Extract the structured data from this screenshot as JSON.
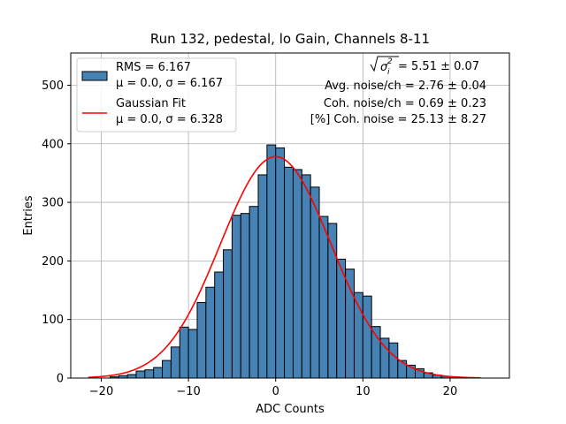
{
  "chart_data": {
    "type": "bar",
    "title": "Run 132, pedestal, lo Gain, Channels 8-11",
    "xlabel": "ADC Counts",
    "ylabel": "Entries",
    "xlim": [
      -23.5,
      26.8
    ],
    "ylim": [
      0,
      555
    ],
    "xticks": [
      -20,
      -10,
      0,
      10,
      20
    ],
    "yticks": [
      0,
      100,
      200,
      300,
      400,
      500
    ],
    "xtick_labels": [
      "−20",
      "−10",
      "0",
      "10",
      "20"
    ],
    "ytick_labels": [
      "0",
      "100",
      "200",
      "300",
      "400",
      "500"
    ],
    "grid": true,
    "bin_width": 1.0,
    "bins": [
      {
        "x0": -19,
        "x1": -18,
        "count": 2
      },
      {
        "x0": -18,
        "x1": -17,
        "count": 4
      },
      {
        "x0": -17,
        "x1": -16,
        "count": 6
      },
      {
        "x0": -16,
        "x1": -15,
        "count": 12
      },
      {
        "x0": -15,
        "x1": -14,
        "count": 14
      },
      {
        "x0": -14,
        "x1": -13,
        "count": 18
      },
      {
        "x0": -13,
        "x1": -12,
        "count": 30
      },
      {
        "x0": -12,
        "x1": -11,
        "count": 53
      },
      {
        "x0": -11,
        "x1": -10,
        "count": 87
      },
      {
        "x0": -10,
        "x1": -9,
        "count": 83
      },
      {
        "x0": -9,
        "x1": -8,
        "count": 129
      },
      {
        "x0": -8,
        "x1": -7,
        "count": 155
      },
      {
        "x0": -7,
        "x1": -6,
        "count": 181
      },
      {
        "x0": -6,
        "x1": -5,
        "count": 219
      },
      {
        "x0": -5,
        "x1": -4,
        "count": 278
      },
      {
        "x0": -4,
        "x1": -3,
        "count": 281
      },
      {
        "x0": -3,
        "x1": -2,
        "count": 293
      },
      {
        "x0": -2,
        "x1": -1,
        "count": 347
      },
      {
        "x0": -1,
        "x1": 0,
        "count": 398
      },
      {
        "x0": 0,
        "x1": 1,
        "count": 393
      },
      {
        "x0": 1,
        "x1": 2,
        "count": 360
      },
      {
        "x0": 2,
        "x1": 3,
        "count": 356
      },
      {
        "x0": 3,
        "x1": 4,
        "count": 347
      },
      {
        "x0": 4,
        "x1": 5,
        "count": 326
      },
      {
        "x0": 5,
        "x1": 6,
        "count": 276
      },
      {
        "x0": 6,
        "x1": 7,
        "count": 264
      },
      {
        "x0": 7,
        "x1": 8,
        "count": 203
      },
      {
        "x0": 8,
        "x1": 9,
        "count": 186
      },
      {
        "x0": 9,
        "x1": 10,
        "count": 146
      },
      {
        "x0": 10,
        "x1": 11,
        "count": 140
      },
      {
        "x0": 11,
        "x1": 12,
        "count": 88
      },
      {
        "x0": 12,
        "x1": 13,
        "count": 68
      },
      {
        "x0": 13,
        "x1": 14,
        "count": 60
      },
      {
        "x0": 14,
        "x1": 15,
        "count": 30
      },
      {
        "x0": 15,
        "x1": 16,
        "count": 22
      },
      {
        "x0": 16,
        "x1": 17,
        "count": 16
      },
      {
        "x0": 17,
        "x1": 18,
        "count": 9
      },
      {
        "x0": 18,
        "x1": 19,
        "count": 5
      },
      {
        "x0": 19,
        "x1": 20,
        "count": 3
      },
      {
        "x0": 20,
        "x1": 21,
        "count": 2
      },
      {
        "x0": 21,
        "x1": 22,
        "count": 1
      }
    ],
    "fit": {
      "name": "Gaussian Fit",
      "mu": 0.0,
      "sigma": 6.328,
      "peak": 378,
      "x_range": [
        -21.5,
        23.5
      ],
      "color": "#ff0000"
    },
    "hist_color": "#4682b4",
    "legend": {
      "position": "top-left",
      "hist_line1": "RMS = 6.167",
      "hist_line2": "μ = 0.0, σ = 6.167",
      "fit_line1": "Gaussian Fit",
      "fit_line2": "μ = 0.0, σ = 6.328"
    },
    "annotations": {
      "total_noise_value": " = 5.51 ± 0.07",
      "avg_noise": "Avg. noise/ch = 2.76 ± 0.04",
      "coh_noise": "Coh. noise/ch = 0.69 ± 0.23",
      "coh_pct": "[%] Coh. noise = 25.13 ± 8.27"
    }
  }
}
